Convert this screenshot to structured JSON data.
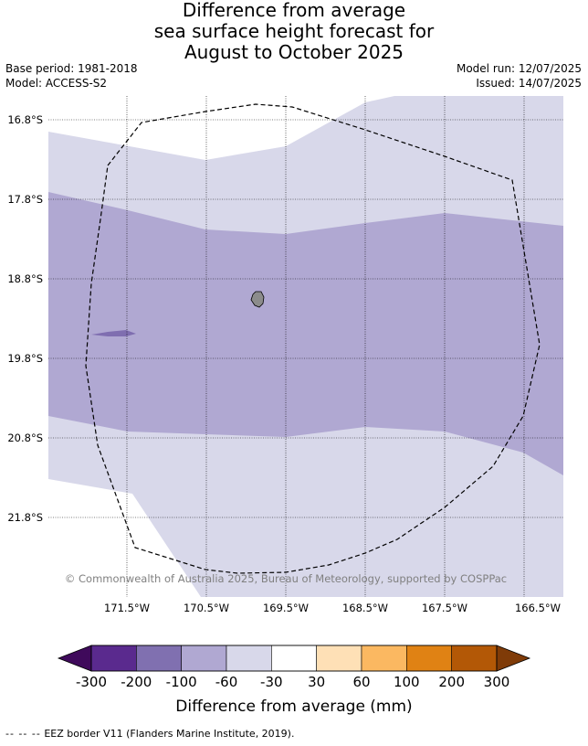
{
  "header": {
    "title_lines": [
      "Difference from average",
      "sea surface height forecast for",
      "August to October 2025"
    ],
    "base_period": "Base period: 1981-2018",
    "model": "Model: ACCESS-S2",
    "model_run": "Model run: 12/07/2025",
    "issued": "Issued: 14/07/2025"
  },
  "map": {
    "lat_labels": [
      "16.8°S",
      "17.8°S",
      "18.8°S",
      "19.8°S",
      "20.8°S",
      "21.8°S"
    ],
    "lon_labels": [
      "171.5°W",
      "170.5°W",
      "169.5°W",
      "168.5°W",
      "167.5°W",
      "166.5°W"
    ],
    "copyright": "© Commonwealth of Australia 2025, Bureau of Meteorology, supported by COSPPac",
    "fill_colors": {
      "band_minus60_minus30": "#d8d8ea",
      "band_minus100_minus60": "#b0a8d2",
      "band_minus200_minus100": "#7f6eb0",
      "land": "#8c8c8c"
    }
  },
  "colorbar": {
    "tick_labels": [
      "-300",
      "-200",
      "-100",
      "-60",
      "-30",
      "30",
      "60",
      "100",
      "200",
      "300"
    ],
    "colors": [
      "#5a2a8e",
      "#8070b0",
      "#b0a8d2",
      "#d8d8ea",
      "#ffffff",
      "#fee0b6",
      "#fbb861",
      "#e08214",
      "#b35806"
    ],
    "under_color": "#3f0a5b",
    "over_color": "#7f3b08",
    "label": "Difference from average (mm)"
  },
  "footnote": {
    "symbol": "-- -- --",
    "text": "EEZ border V11 (Flanders Marine Institute, 2019)."
  }
}
